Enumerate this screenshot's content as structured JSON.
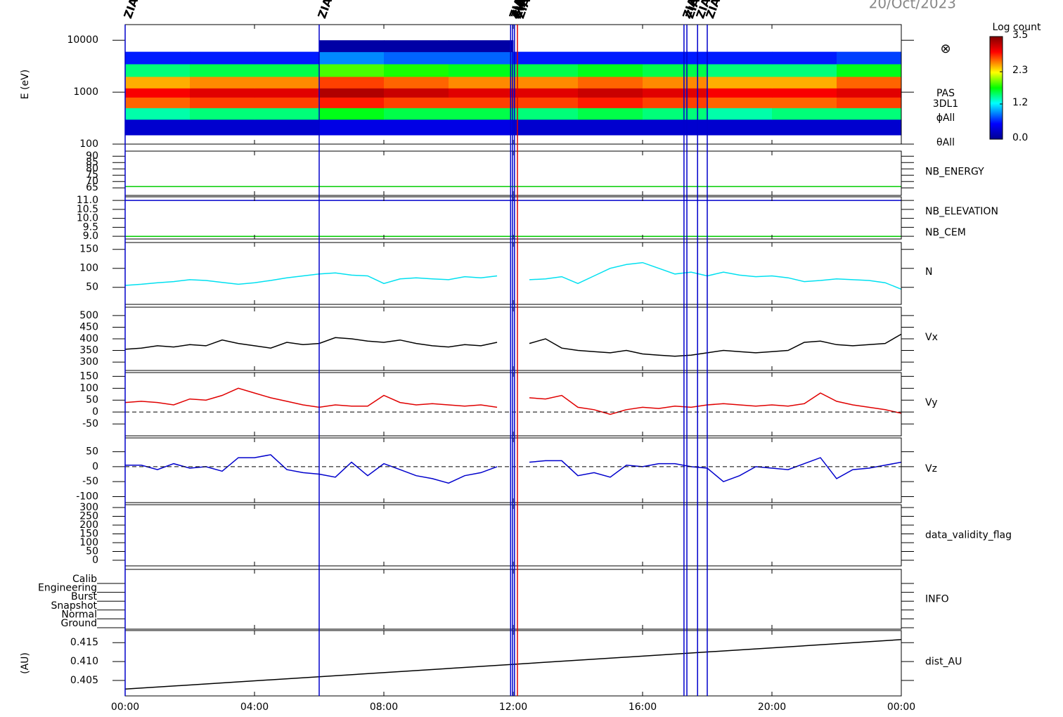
{
  "date": "20/Oct/2023",
  "events": [
    {
      "x": 0,
      "color": "#0000cc",
      "label": "ZIAS"
    },
    {
      "x": 6.0,
      "color": "#0000cc",
      "label": "ZIAS"
    },
    {
      "x": 11.92,
      "color": "#0000cc",
      "label": "ZIAS"
    },
    {
      "x": 11.98,
      "color": "#0000cc",
      "label": "ZIAS"
    },
    {
      "x": 12.04,
      "color": "#0000cc",
      "label": "ZIAS"
    },
    {
      "x": 12.13,
      "color": "#e00000",
      "label": "ZIAS"
    },
    {
      "x": 17.28,
      "color": "#0000cc",
      "label": "ZIAS"
    },
    {
      "x": 17.37,
      "color": "#0000cc",
      "label": "ZIAS"
    },
    {
      "x": 17.7,
      "color": "#0000cc",
      "label": "ZIAS"
    },
    {
      "x": 18.0,
      "color": "#0000cc",
      "label": "ZIAS"
    }
  ],
  "chart_data": [
    {
      "type": "heatmap",
      "ylabel": "E (eV)",
      "log": true,
      "ylim": [
        100,
        20000
      ],
      "yticks": [
        100,
        1000,
        10000
      ],
      "symbol": "⊗",
      "side_labels": [
        "PAS",
        "3DL1",
        "ϕAll",
        "θAll"
      ],
      "colorbar": {
        "title": "Log count",
        "lim": [
          0,
          3.5
        ],
        "ticks": [
          {
            "value": 0,
            "label": "0.0"
          },
          1.2,
          2.3,
          3.5
        ]
      },
      "x_bins": [
        0,
        2,
        4,
        6,
        8,
        10,
        12,
        14,
        16,
        18,
        20,
        22,
        24
      ],
      "y_bins": [
        150,
        300,
        500,
        800,
        1200,
        2000,
        3500,
        6000,
        10000
      ],
      "z": [
        [
          0.3,
          0.3,
          0.3,
          0.4,
          0.4,
          0.4,
          0.3,
          0.3,
          0.3,
          0.3,
          0.3,
          0.3
        ],
        [
          1.4,
          1.5,
          1.5,
          1.7,
          1.6,
          1.6,
          1.5,
          1.6,
          1.5,
          1.4,
          1.5,
          1.5
        ],
        [
          2.7,
          2.8,
          2.8,
          2.9,
          2.8,
          2.8,
          2.8,
          2.9,
          2.8,
          2.7,
          2.7,
          2.8
        ],
        [
          3.0,
          3.1,
          3.1,
          3.3,
          3.2,
          3.1,
          3.1,
          3.2,
          3.1,
          3.0,
          3.0,
          3.1
        ],
        [
          2.5,
          2.6,
          2.6,
          2.8,
          2.7,
          2.6,
          2.6,
          2.7,
          2.6,
          2.5,
          2.5,
          2.7
        ],
        [
          1.5,
          1.6,
          1.6,
          1.9,
          1.8,
          1.7,
          1.6,
          1.7,
          1.6,
          1.5,
          1.5,
          1.7
        ],
        [
          0.6,
          0.6,
          0.6,
          0.9,
          0.8,
          0.8,
          0.6,
          0.6,
          0.6,
          0.6,
          0.6,
          0.7
        ],
        [
          null,
          null,
          null,
          0.1,
          0.1,
          0.1,
          null,
          null,
          null,
          null,
          null,
          null
        ]
      ]
    },
    {
      "type": "line",
      "ylim": [
        59,
        94
      ],
      "yticks": [
        65,
        70,
        75,
        80,
        85,
        90
      ],
      "x": [
        0,
        24
      ],
      "series": [
        {
          "name": "NB_ENERGY",
          "color": "#00cc00",
          "values": [
            66,
            66
          ]
        }
      ]
    },
    {
      "type": "line",
      "ylim": [
        8.85,
        11.2
      ],
      "yticks": [
        {
          "value": 9,
          "label": "9.0"
        },
        9.5,
        {
          "value": 10,
          "label": "10.0"
        },
        10.5,
        {
          "value": 11,
          "label": "11.0"
        }
      ],
      "x": [
        0,
        24
      ],
      "series": [
        {
          "name": "NB_ELEVATION",
          "color": "#00cc00",
          "values": [
            9.0,
            9.0
          ]
        },
        {
          "name": "NB_CEM",
          "color": "#0000cc",
          "values": [
            11.0,
            11.0
          ]
        }
      ]
    },
    {
      "type": "line",
      "ylim": [
        5,
        168
      ],
      "yticks": [
        50,
        100,
        150
      ],
      "x": [
        0,
        0.5,
        1,
        1.5,
        2,
        2.5,
        3,
        3.5,
        4,
        4.5,
        5,
        5.5,
        6,
        6.5,
        7,
        7.5,
        8,
        8.5,
        9,
        9.5,
        10,
        10.5,
        11,
        11.5,
        12,
        12.5,
        13,
        13.5,
        14,
        14.5,
        15,
        15.5,
        16,
        16.5,
        17,
        17.5,
        18,
        18.5,
        19,
        19.5,
        20,
        20.5,
        21,
        21.5,
        22,
        22.5,
        23,
        23.5,
        24
      ],
      "series": [
        {
          "name": "N",
          "color": "#00e0f0",
          "values": [
            55,
            58,
            62,
            65,
            70,
            68,
            63,
            58,
            62,
            68,
            75,
            80,
            85,
            88,
            82,
            80,
            60,
            72,
            75,
            72,
            70,
            78,
            75,
            80,
            null,
            70,
            72,
            78,
            60,
            80,
            100,
            110,
            115,
            100,
            85,
            90,
            80,
            90,
            82,
            78,
            80,
            75,
            65,
            68,
            72,
            70,
            68,
            62,
            45
          ]
        }
      ]
    },
    {
      "type": "line",
      "ylim": [
        264,
        536
      ],
      "yticks": [
        300,
        350,
        400,
        450,
        500
      ],
      "x": [
        0,
        0.5,
        1,
        1.5,
        2,
        2.5,
        3,
        3.5,
        4,
        4.5,
        5,
        5.5,
        6,
        6.5,
        7,
        7.5,
        8,
        8.5,
        9,
        9.5,
        10,
        10.5,
        11,
        11.5,
        12,
        12.5,
        13,
        13.5,
        14,
        14.5,
        15,
        15.5,
        16,
        16.5,
        17,
        17.5,
        18,
        18.5,
        19,
        19.5,
        20,
        20.5,
        21,
        21.5,
        22,
        22.5,
        23,
        23.5,
        24
      ],
      "series": [
        {
          "name": "Vx",
          "color": "#000000",
          "values": [
            355,
            360,
            370,
            365,
            375,
            370,
            395,
            380,
            370,
            360,
            385,
            375,
            380,
            405,
            400,
            390,
            385,
            395,
            380,
            370,
            365,
            375,
            370,
            385,
            null,
            380,
            400,
            360,
            350,
            345,
            340,
            350,
            335,
            330,
            325,
            330,
            340,
            350,
            345,
            340,
            345,
            350,
            385,
            390,
            375,
            370,
            375,
            380,
            420
          ]
        }
      ]
    },
    {
      "type": "line",
      "ylim": [
        -100,
        166
      ],
      "yticks": [
        -50,
        0,
        50,
        100,
        150
      ],
      "zero_line": true,
      "x": [
        0,
        0.5,
        1,
        1.5,
        2,
        2.5,
        3,
        3.5,
        4,
        4.5,
        5,
        5.5,
        6,
        6.5,
        7,
        7.5,
        8,
        8.5,
        9,
        9.5,
        10,
        10.5,
        11,
        11.5,
        12,
        12.5,
        13,
        13.5,
        14,
        14.5,
        15,
        15.5,
        16,
        16.5,
        17,
        17.5,
        18,
        18.5,
        19,
        19.5,
        20,
        20.5,
        21,
        21.5,
        22,
        22.5,
        23,
        23.5,
        24
      ],
      "series": [
        {
          "name": "Vy",
          "color": "#e00000",
          "values": [
            40,
            45,
            40,
            30,
            55,
            50,
            70,
            100,
            80,
            60,
            45,
            30,
            20,
            30,
            25,
            25,
            70,
            40,
            30,
            35,
            30,
            25,
            30,
            20,
            null,
            60,
            55,
            70,
            20,
            10,
            -10,
            10,
            20,
            15,
            25,
            20,
            30,
            35,
            30,
            25,
            30,
            25,
            35,
            80,
            45,
            30,
            20,
            10,
            -5
          ]
        }
      ]
    },
    {
      "type": "line",
      "ylim": [
        -120,
        96
      ],
      "yticks": [
        -100,
        -50,
        0,
        50
      ],
      "zero_line": true,
      "x": [
        0,
        0.5,
        1,
        1.5,
        2,
        2.5,
        3,
        3.5,
        4,
        4.5,
        5,
        5.5,
        6,
        6.5,
        7,
        7.5,
        8,
        8.5,
        9,
        9.5,
        10,
        10.5,
        11,
        11.5,
        12,
        12.5,
        13,
        13.5,
        14,
        14.5,
        15,
        15.5,
        16,
        16.5,
        17,
        17.5,
        18,
        18.5,
        19,
        19.5,
        20,
        20.5,
        21,
        21.5,
        22,
        22.5,
        23,
        23.5,
        24
      ],
      "series": [
        {
          "name": "Vz",
          "color": "#0000cc",
          "values": [
            5,
            5,
            -10,
            10,
            -5,
            0,
            -15,
            30,
            30,
            40,
            -10,
            -20,
            -25,
            -35,
            15,
            -30,
            10,
            -10,
            -30,
            -40,
            -55,
            -30,
            -20,
            0,
            null,
            15,
            20,
            20,
            -30,
            -20,
            -35,
            5,
            0,
            10,
            10,
            0,
            -5,
            -50,
            -30,
            0,
            -5,
            -10,
            10,
            30,
            -40,
            -10,
            -5,
            5,
            15
          ]
        }
      ]
    },
    {
      "type": "empty",
      "label": "data_validity_flag",
      "ylim": [
        -32,
        316
      ],
      "yticks": [
        0,
        50,
        100,
        150,
        200,
        250,
        300
      ]
    },
    {
      "type": "category",
      "label": "INFO",
      "categories": [
        "Calib",
        "Engineering",
        "Burst",
        "Snapshot",
        "Normal",
        "Ground"
      ]
    },
    {
      "type": "line",
      "ylabel": "(AU)",
      "ylim": [
        0.4009,
        0.4182
      ],
      "yticks": [
        0.405,
        {
          "value": 0.41,
          "label": "0.410"
        },
        0.415
      ],
      "xlim": [
        0,
        24
      ],
      "xticks": [
        {
          "value": 0,
          "label": "00:00"
        },
        {
          "value": 4,
          "label": "04:00"
        },
        {
          "value": 8,
          "label": "08:00"
        },
        {
          "value": 12,
          "label": "12:00"
        },
        {
          "value": 16,
          "label": "16:00"
        },
        {
          "value": 20,
          "label": "20:00"
        },
        {
          "value": 24,
          "label": "00:00"
        }
      ],
      "x": [
        0,
        24
      ],
      "series": [
        {
          "name": "dist_AU",
          "color": "#000000",
          "values": [
            0.4027,
            0.4158
          ]
        }
      ]
    }
  ]
}
